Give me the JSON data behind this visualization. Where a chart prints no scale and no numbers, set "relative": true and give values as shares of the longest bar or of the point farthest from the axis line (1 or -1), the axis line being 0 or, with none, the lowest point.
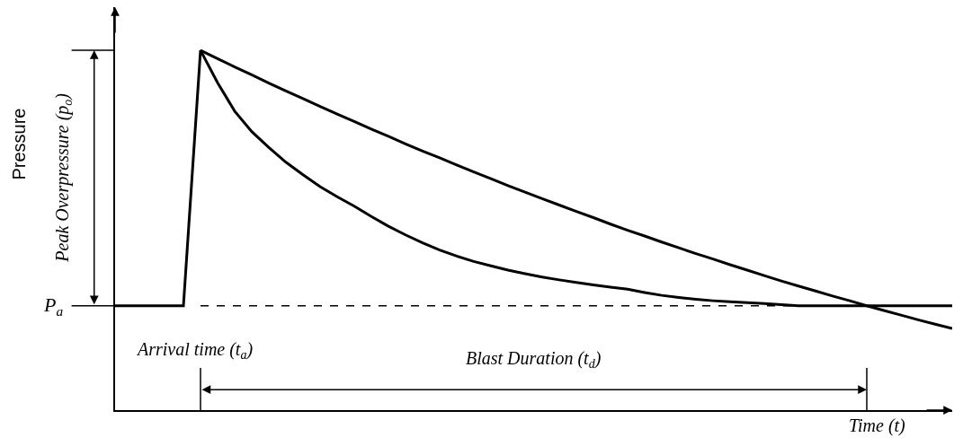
{
  "chart_data": {
    "type": "line",
    "relative": true,
    "ylabel": "Pressure",
    "xlabel": "Time (t)",
    "categories": [
      null,
      null,
      null,
      null,
      null,
      null,
      null,
      null,
      null,
      null,
      null,
      null,
      null,
      null,
      null,
      null,
      null,
      null,
      null,
      null,
      null,
      null,
      null,
      null,
      null,
      null,
      null,
      null,
      null,
      null,
      null,
      null,
      null,
      null,
      null,
      null,
      null,
      null,
      null,
      null,
      null,
      null,
      null,
      null,
      null,
      null,
      null,
      null,
      null,
      null
    ],
    "series": [
      {
        "color": "#000000",
        "values": [
          0.29,
          0.29,
          0.29,
          0.29,
          0.29,
          1.0,
          0.91,
          0.831,
          0.774,
          0.73,
          0.689,
          0.654,
          0.621,
          0.593,
          0.567,
          0.538,
          0.511,
          0.487,
          0.465,
          0.445,
          0.428,
          0.413,
          0.401,
          0.389,
          0.379,
          0.37,
          0.362,
          0.355,
          0.348,
          0.342,
          0.336,
          0.327,
          0.319,
          0.313,
          0.308,
          0.304,
          0.301,
          0.299,
          0.296,
          0.293,
          0.29,
          0.29,
          0.29,
          0.29,
          0.29,
          0.29,
          0.29,
          0.29,
          0.29,
          0.29
        ]
      },
      {
        "color": "#000000",
        "values": [
          null,
          null,
          null,
          null,
          null,
          1.0,
          0.977,
          0.954,
          0.932,
          0.909,
          0.887,
          0.866,
          0.844,
          0.823,
          0.802,
          0.781,
          0.761,
          0.74,
          0.72,
          0.701,
          0.681,
          0.662,
          0.643,
          0.624,
          0.606,
          0.588,
          0.57,
          0.552,
          0.535,
          0.517,
          0.5,
          0.484,
          0.467,
          0.451,
          0.435,
          0.42,
          0.404,
          0.389,
          0.374,
          0.359,
          0.345,
          0.331,
          0.317,
          0.304,
          0.29,
          0.277,
          0.264,
          0.251,
          0.239,
          0.227
        ]
      }
    ],
    "ref_lines": [
      {
        "axis": "y",
        "value": 0.29,
        "label": "P$_{a}$",
        "line_style": "dashed",
        "color": "#000000"
      }
    ],
    "annotations": [
      "Peak Overpressure (p$_{o}$)",
      "Arrival time (t$_{a}$)",
      "Blast Duration (t$_{d}$)"
    ],
    "marker": "none",
    "line_style": "solid"
  }
}
